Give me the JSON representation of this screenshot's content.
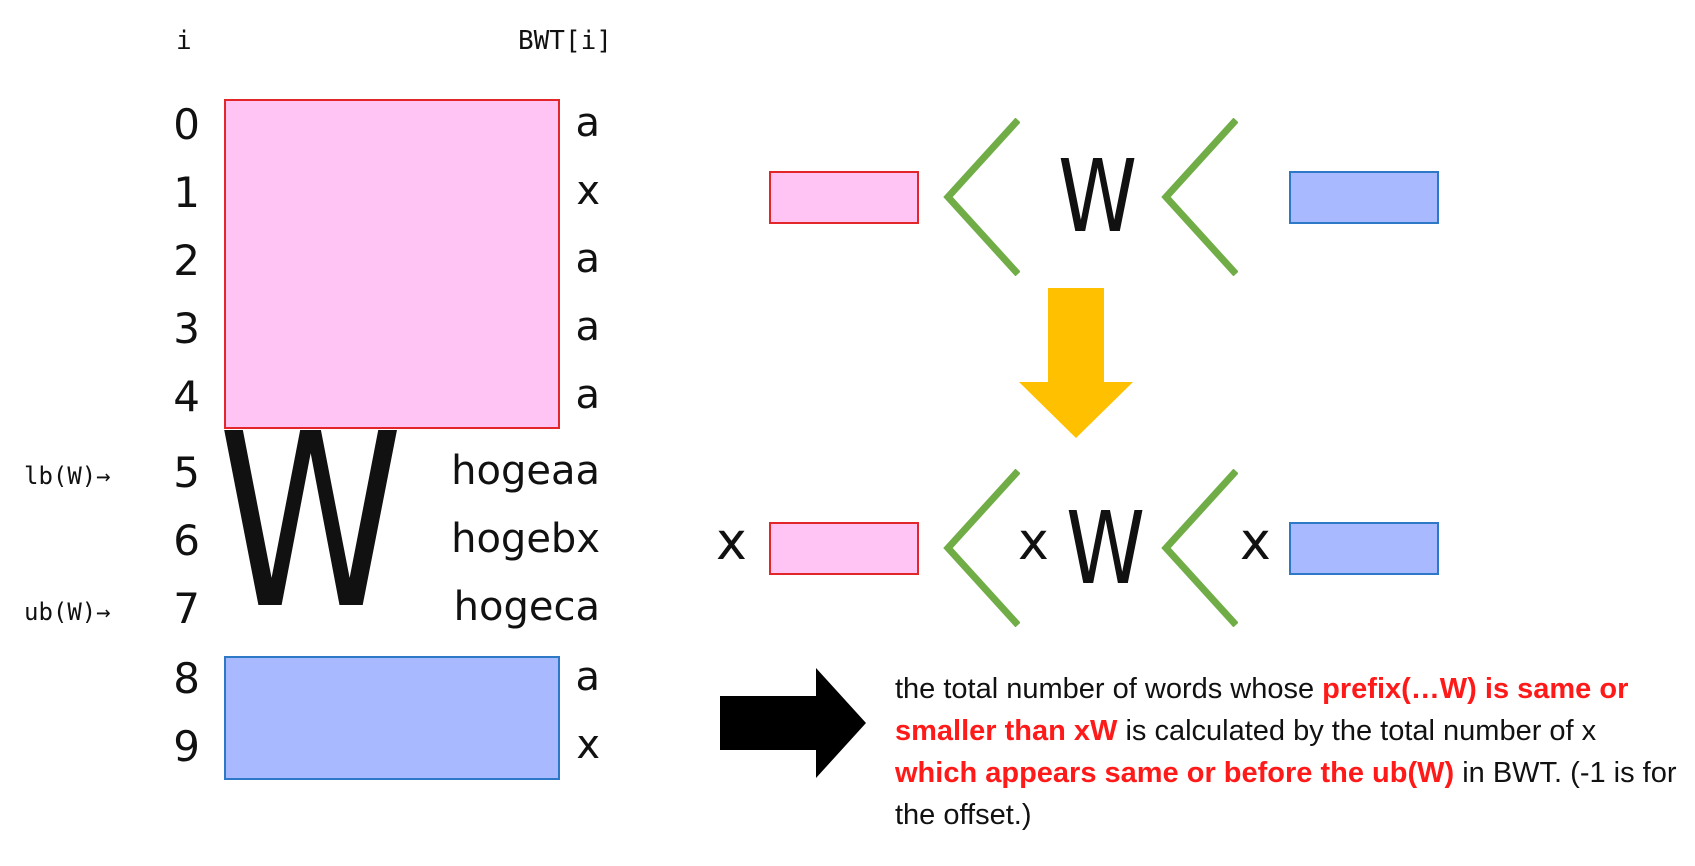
{
  "table": {
    "header_i": "i",
    "header_bwt": "BWT[i]",
    "rows": [
      {
        "i": "0",
        "bwt": "a"
      },
      {
        "i": "1",
        "bwt": "x"
      },
      {
        "i": "2",
        "bwt": "a"
      },
      {
        "i": "3",
        "bwt": "a"
      },
      {
        "i": "4",
        "bwt": "a"
      },
      {
        "i": "5",
        "bwt": "hogeaa"
      },
      {
        "i": "6",
        "bwt": "hogebx"
      },
      {
        "i": "7",
        "bwt": "hogeca"
      },
      {
        "i": "8",
        "bwt": "a"
      },
      {
        "i": "9",
        "bwt": "x"
      }
    ],
    "lb_label": "lb(W)→",
    "ub_label": "ub(W)→",
    "big_w": "W"
  },
  "top_relation": {
    "w": "W"
  },
  "bottom_relation": {
    "x_left": "x",
    "x_mid": "x",
    "w": "W",
    "x_right": "x"
  },
  "explanation": {
    "part1": "the total number of words whose ",
    "hl1": "prefix(…W) is same or smaller than xW",
    "part2": " is calculated by the total number of x ",
    "hl2": "which appears same or before the ub(W)",
    "part3": " in BWT. (-1 is for the offset.)"
  },
  "colors": {
    "pink_fill": "#ffc4f4",
    "pink_border": "#e3262a",
    "blue_fill": "#a9b9ff",
    "blue_border": "#2e78c8",
    "chevron": "#70ad47",
    "down_arrow": "#ffc000",
    "right_arrow": "#000000",
    "highlight": "#ff1a1a"
  },
  "icons": [
    "less-than-chevron",
    "down-arrow-icon",
    "right-arrow-icon"
  ]
}
